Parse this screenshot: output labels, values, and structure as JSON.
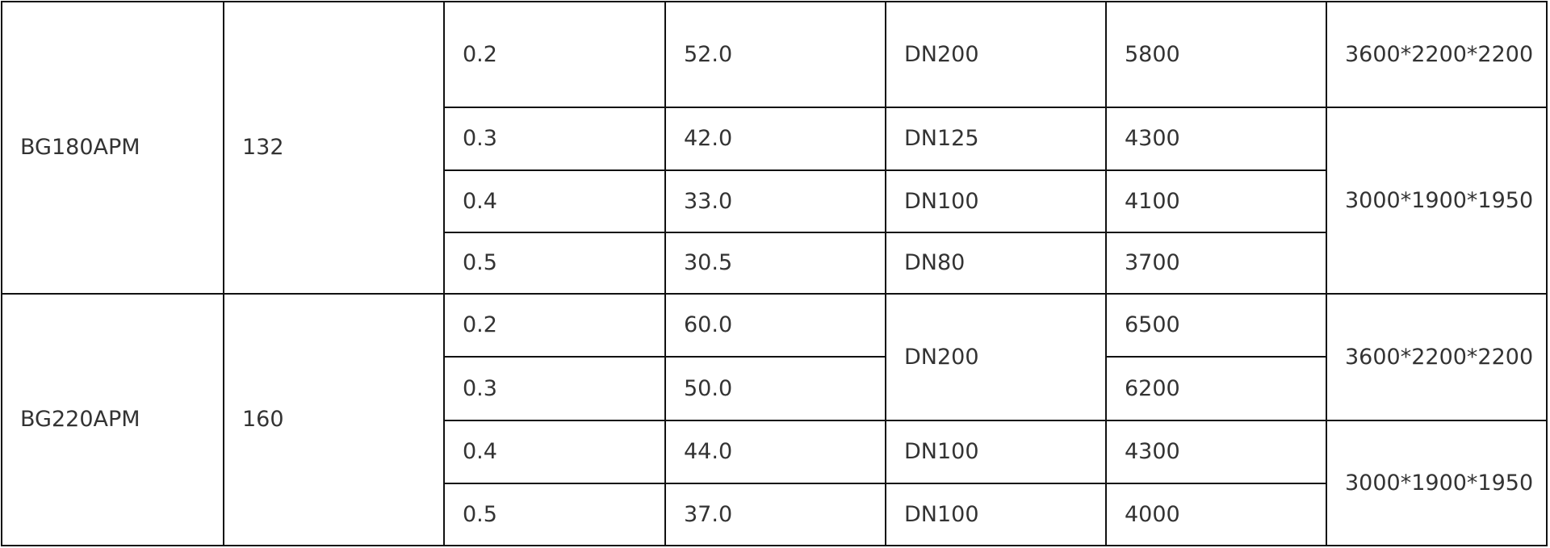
{
  "table": {
    "groups": [
      {
        "model": "BG180APM",
        "power": "132",
        "rows": [
          {
            "pressure": "0.2",
            "flow": "52.0",
            "pipe": "DN200",
            "weight": "5800",
            "size": "3600*2200*2200"
          },
          {
            "pressure": "0.3",
            "flow": "42.0",
            "pipe": "DN125",
            "weight": "4300",
            "size": "3000*1900*1950"
          },
          {
            "pressure": "0.4",
            "flow": "33.0",
            "pipe": "DN100",
            "weight": "4100"
          },
          {
            "pressure": "0.5",
            "flow": "30.5",
            "pipe": "DN80",
            "weight": "3700"
          }
        ]
      },
      {
        "model": "BG220APM",
        "power": "160",
        "rows": [
          {
            "pressure": "0.2",
            "flow": "60.0",
            "pipe": "DN200",
            "weight": "6500",
            "size": "3600*2200*2200"
          },
          {
            "pressure": "0.3",
            "flow": "50.0",
            "weight": "6200"
          },
          {
            "pressure": "0.4",
            "flow": "44.0",
            "pipe": "DN100",
            "weight": "4300",
            "size": "3000*1900*1950"
          },
          {
            "pressure": "0.5",
            "flow": "37.0",
            "pipe": "DN100",
            "weight": "4000"
          }
        ]
      }
    ]
  }
}
